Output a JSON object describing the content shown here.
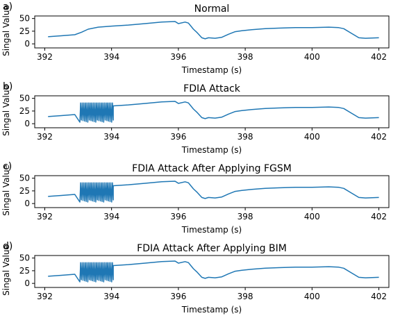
{
  "chart_data": [
    {
      "type": "line",
      "panel_label": "a)",
      "title": "Normal",
      "xlabel": "Timestamp (s)",
      "ylabel": "Singal Value",
      "xlim": [
        391.7,
        402.3
      ],
      "ylim": [
        -8,
        55
      ],
      "xticks": [
        392,
        394,
        396,
        398,
        400,
        402
      ],
      "yticks": [
        0,
        25,
        50
      ],
      "attack_window": null,
      "series": [
        {
          "x": [
            392.1,
            392.5,
            392.9,
            393.1,
            393.3,
            393.6,
            394.0,
            394.5,
            395.0,
            395.5,
            395.9,
            396.0,
            396.2,
            396.3,
            396.35,
            396.45,
            396.55,
            396.7,
            396.8,
            396.9,
            397.1,
            397.3,
            397.5,
            397.7,
            397.9,
            398.2,
            398.6,
            399.0,
            399.5,
            400.0,
            400.5,
            400.8,
            400.95,
            401.2,
            401.4,
            401.6,
            402.0
          ],
          "y": [
            14,
            16,
            18,
            23,
            29,
            33,
            35,
            37,
            40,
            43,
            44,
            40,
            43,
            41,
            37,
            29,
            23,
            12,
            10,
            12,
            11,
            13,
            19,
            24,
            26,
            28,
            30,
            31,
            32,
            32,
            33,
            32,
            30,
            20,
            12,
            11,
            12
          ]
        }
      ]
    },
    {
      "type": "line",
      "panel_label": "b)",
      "title": "FDIA Attack",
      "xlabel": "Timestamp (s)",
      "ylabel": "Singal Value",
      "xlim": [
        391.7,
        402.3
      ],
      "ylim": [
        -8,
        55
      ],
      "xticks": [
        392,
        394,
        396,
        398,
        400,
        402
      ],
      "yticks": [
        0,
        25,
        50
      ],
      "attack_window": {
        "x_start": 393.05,
        "x_end": 394.05,
        "y_min": 3,
        "y_max": 44
      },
      "series": [
        {
          "x": [
            392.1,
            392.5,
            392.9,
            393.1,
            393.3,
            393.6,
            394.0,
            394.5,
            395.0,
            395.5,
            395.9,
            396.0,
            396.2,
            396.3,
            396.35,
            396.45,
            396.55,
            396.7,
            396.8,
            396.9,
            397.1,
            397.3,
            397.5,
            397.7,
            397.9,
            398.2,
            398.6,
            399.0,
            399.5,
            400.0,
            400.5,
            400.8,
            400.95,
            401.2,
            401.4,
            401.6,
            402.0
          ],
          "y": [
            14,
            16,
            18,
            23,
            29,
            33,
            35,
            37,
            40,
            43,
            44,
            40,
            43,
            41,
            37,
            29,
            23,
            12,
            10,
            12,
            11,
            13,
            19,
            24,
            26,
            28,
            30,
            31,
            32,
            32,
            33,
            32,
            30,
            20,
            12,
            11,
            12
          ]
        }
      ]
    },
    {
      "type": "line",
      "panel_label": "c)",
      "title": "FDIA Attack After Applying FGSM",
      "xlabel": "Timestamp (s)",
      "ylabel": "Singal Value",
      "xlim": [
        391.7,
        402.3
      ],
      "ylim": [
        -8,
        55
      ],
      "xticks": [
        392,
        394,
        396,
        398,
        400,
        402
      ],
      "yticks": [
        0,
        25,
        50
      ],
      "attack_window": {
        "x_start": 393.05,
        "x_end": 394.05,
        "y_min": 3,
        "y_max": 44
      },
      "series": [
        {
          "x": [
            392.1,
            392.5,
            392.9,
            393.1,
            393.3,
            393.6,
            394.0,
            394.5,
            395.0,
            395.5,
            395.9,
            396.0,
            396.2,
            396.3,
            396.35,
            396.45,
            396.55,
            396.7,
            396.8,
            396.9,
            397.1,
            397.3,
            397.5,
            397.7,
            397.9,
            398.2,
            398.6,
            399.0,
            399.5,
            400.0,
            400.5,
            400.8,
            400.95,
            401.2,
            401.4,
            401.6,
            402.0
          ],
          "y": [
            14,
            16,
            18,
            23,
            29,
            33,
            35,
            37,
            40,
            43,
            44,
            40,
            43,
            41,
            37,
            29,
            23,
            12,
            10,
            12,
            11,
            13,
            19,
            24,
            26,
            28,
            30,
            31,
            32,
            32,
            33,
            32,
            30,
            20,
            12,
            11,
            12
          ]
        }
      ]
    },
    {
      "type": "line",
      "panel_label": "d)",
      "title": "FDIA Attack After Applying BIM",
      "xlabel": "Timestamp (s)",
      "ylabel": "Singal Value",
      "xlim": [
        391.7,
        402.3
      ],
      "ylim": [
        -8,
        55
      ],
      "xticks": [
        392,
        394,
        396,
        398,
        400,
        402
      ],
      "yticks": [
        0,
        25,
        50
      ],
      "attack_window": {
        "x_start": 393.05,
        "x_end": 394.05,
        "y_min": 3,
        "y_max": 44
      },
      "series": [
        {
          "x": [
            392.1,
            392.5,
            392.9,
            393.1,
            393.3,
            393.6,
            394.0,
            394.5,
            395.0,
            395.5,
            395.9,
            396.0,
            396.2,
            396.3,
            396.35,
            396.45,
            396.55,
            396.7,
            396.8,
            396.9,
            397.1,
            397.3,
            397.5,
            397.7,
            397.9,
            398.2,
            398.6,
            399.0,
            399.5,
            400.0,
            400.5,
            400.8,
            400.95,
            401.2,
            401.4,
            401.6,
            402.0
          ],
          "y": [
            14,
            16,
            18,
            23,
            29,
            33,
            35,
            37,
            40,
            43,
            44,
            40,
            43,
            41,
            37,
            29,
            23,
            12,
            10,
            12,
            11,
            13,
            19,
            24,
            26,
            28,
            30,
            31,
            32,
            32,
            33,
            32,
            30,
            20,
            12,
            11,
            12
          ]
        }
      ]
    }
  ],
  "colors": {
    "line": "#1f77b4",
    "axes": "#000000"
  }
}
